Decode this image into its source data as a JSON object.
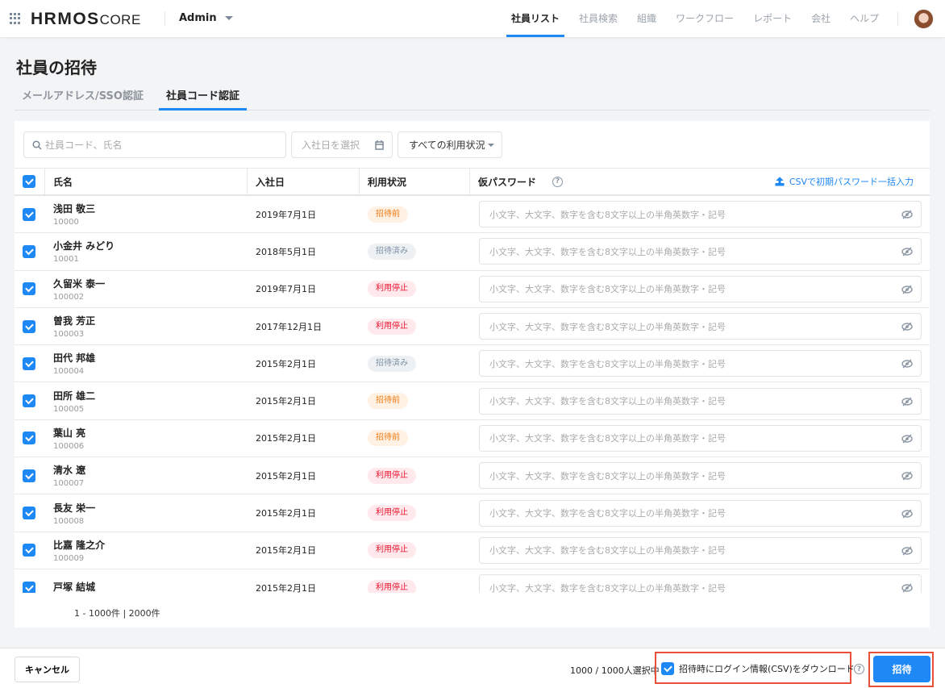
{
  "header": {
    "logo": "HRMOS",
    "logo_suffix": "CORE",
    "user_menu": "Admin",
    "nav": [
      {
        "label": "社員リスト",
        "active": true
      },
      {
        "label": "社員検索"
      },
      {
        "label": "組織"
      },
      {
        "label": "ワークフロー"
      },
      {
        "label": "レポート"
      },
      {
        "label": "会社"
      },
      {
        "label": "ヘルプ"
      }
    ]
  },
  "page": {
    "title": "社員の招待",
    "tabs": [
      {
        "label": "メールアドレス/SSO認証"
      },
      {
        "label": "社員コード認証",
        "active": true
      }
    ]
  },
  "filters": {
    "search_placeholder": "社員コード、氏名",
    "date_placeholder": "入社日を選択",
    "status_select": "すべての利用状況"
  },
  "table": {
    "columns": {
      "name": "氏名",
      "date": "入社日",
      "status": "利用状況",
      "password": "仮パスワード"
    },
    "csv_upload": "CSVで初期パスワード一括入力",
    "password_placeholder": "小文字、大文字、数字を含む8文字以上の半角英数字・記号",
    "status_colors": {
      "招待前": {
        "bg": "#fff1e4",
        "fg": "#f07a10"
      },
      "招待済み": {
        "bg": "#eef1f4",
        "fg": "#7d8fa3"
      },
      "利用停止": {
        "bg": "#ffe9ec",
        "fg": "#e8112d"
      }
    },
    "rows": [
      {
        "name": "浅田 敬三",
        "code": "10000",
        "date": "2019年7月1日",
        "status": "招待前",
        "checked": true
      },
      {
        "name": "小金井 みどり",
        "code": "10001",
        "date": "2018年5月1日",
        "status": "招待済み",
        "checked": true
      },
      {
        "name": "久留米 泰一",
        "code": "100002",
        "date": "2019年7月1日",
        "status": "利用停止",
        "checked": true
      },
      {
        "name": "曽我 芳正",
        "code": "100003",
        "date": "2017年12月1日",
        "status": "利用停止",
        "checked": true
      },
      {
        "name": "田代 邦雄",
        "code": "100004",
        "date": "2015年2月1日",
        "status": "招待済み",
        "checked": true
      },
      {
        "name": "田所 雄二",
        "code": "100005",
        "date": "2015年2月1日",
        "status": "招待前",
        "checked": true
      },
      {
        "name": "葉山 亮",
        "code": "100006",
        "date": "2015年2月1日",
        "status": "招待前",
        "checked": true
      },
      {
        "name": "清水 遼",
        "code": "100007",
        "date": "2015年2月1日",
        "status": "利用停止",
        "checked": true
      },
      {
        "name": "長友 栄一",
        "code": "100008",
        "date": "2015年2月1日",
        "status": "利用停止",
        "checked": true
      },
      {
        "name": "比嘉 隆之介",
        "code": "100009",
        "date": "2015年2月1日",
        "status": "利用停止",
        "checked": true
      },
      {
        "name": "戸塚 結城",
        "code": "",
        "date": "2015年2月1日",
        "status": "利用停止",
        "checked": true
      }
    ],
    "pagination": "1 - 1000件 | 2000件"
  },
  "footer": {
    "cancel": "キャンセル",
    "selection": "1000 / 1000人選択中",
    "download_csv_label": "招待時にログイン情報(CSV)をダウンロード",
    "download_checked": true,
    "invite": "招待"
  }
}
